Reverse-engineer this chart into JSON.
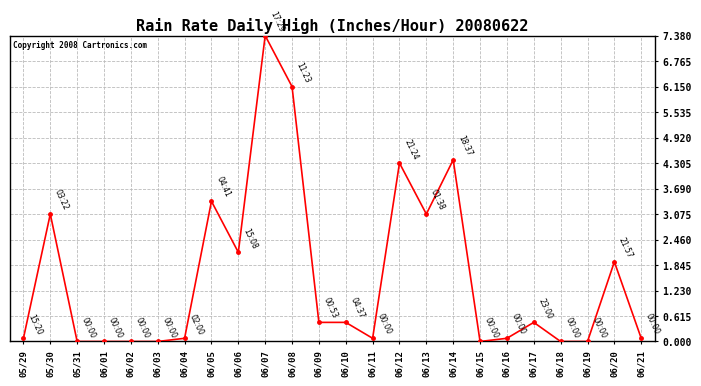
{
  "title": "Rain Rate Daily High (Inches/Hour) 20080622",
  "copyright": "Copyright 2008 Cartronics.com",
  "x_labels": [
    "05/29",
    "05/30",
    "05/31",
    "06/01",
    "06/02",
    "06/03",
    "06/04",
    "06/05",
    "06/06",
    "06/07",
    "06/08",
    "06/09",
    "06/10",
    "06/11",
    "06/12",
    "06/13",
    "06/14",
    "06/15",
    "06/16",
    "06/17",
    "06/18",
    "06/19",
    "06/20",
    "06/21"
  ],
  "y_values": [
    0.077,
    3.075,
    0.0,
    0.0,
    0.0,
    0.0,
    0.077,
    3.383,
    2.152,
    7.38,
    6.15,
    0.461,
    0.461,
    0.077,
    4.305,
    3.075,
    4.382,
    0.0,
    0.077,
    0.461,
    0.0,
    0.0,
    1.922,
    0.077
  ],
  "point_labels": [
    "15:20",
    "03:22",
    "00:00",
    "00:00",
    "00:00",
    "00:00",
    "02:00",
    "04:41",
    "15:08",
    "17:29",
    "11:23",
    "00:53",
    "04:37",
    "00:00",
    "21:24",
    "01:38",
    "18:37",
    "00:00",
    "00:00",
    "23:00",
    "00:00",
    "00:00",
    "21:57",
    "00:00"
  ],
  "y_ticks": [
    0.0,
    0.615,
    1.23,
    1.845,
    2.46,
    3.075,
    3.69,
    4.305,
    4.92,
    5.535,
    6.15,
    6.765,
    7.38
  ],
  "ylim": [
    0.0,
    7.38
  ],
  "line_color": "red",
  "marker_color": "red",
  "grid_color": "#bbbbbb",
  "bg_color": "white",
  "title_fontsize": 11
}
